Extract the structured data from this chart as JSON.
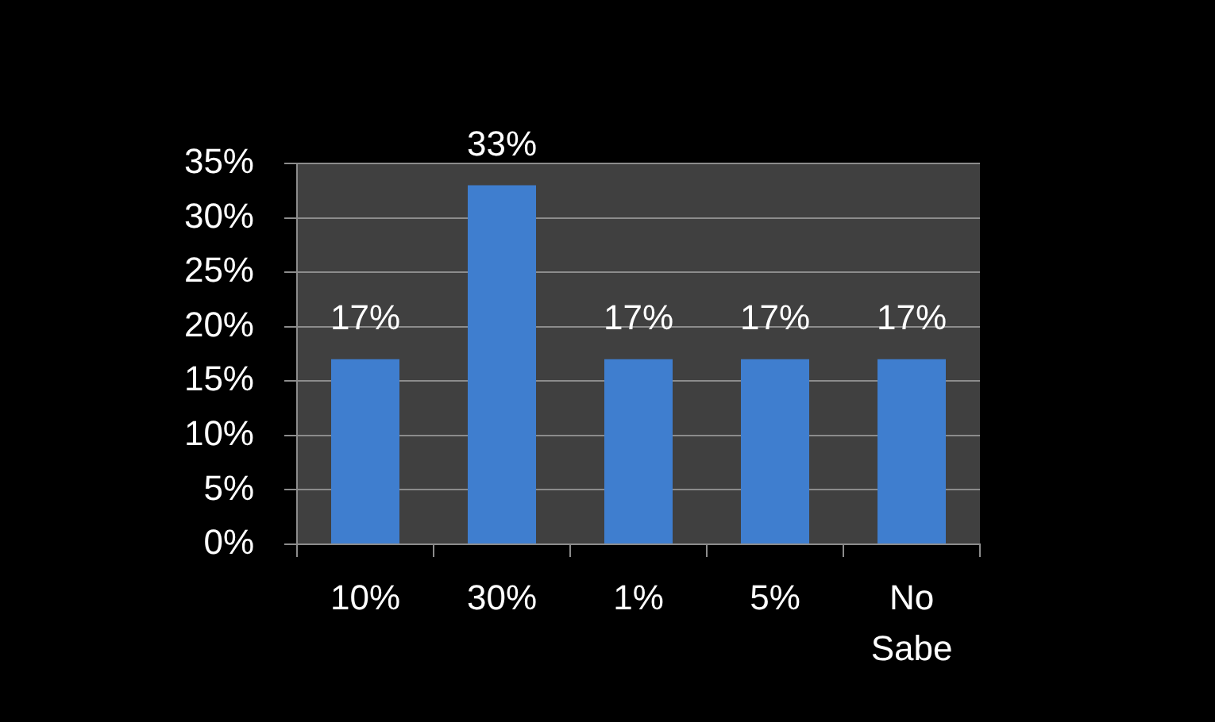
{
  "chart_data": {
    "type": "bar",
    "categories": [
      "10%",
      "30%",
      "1%",
      "5%",
      "No Sabe"
    ],
    "values": [
      17,
      33,
      17,
      17,
      17
    ],
    "color": "#3f7ecf",
    "value_labels": [
      "17%",
      "33%",
      "17%",
      "17%",
      "17%"
    ],
    "ylim": [
      0,
      35
    ],
    "yticks": [
      {
        "value": 0,
        "label": "0%"
      },
      {
        "value": 5,
        "label": "5%"
      },
      {
        "value": 10,
        "label": "10%"
      },
      {
        "value": 15,
        "label": "15%"
      },
      {
        "value": 20,
        "label": "20%"
      },
      {
        "value": 25,
        "label": "25%"
      },
      {
        "value": 30,
        "label": "30%"
      },
      {
        "value": 35,
        "label": "35%"
      }
    ],
    "grid": "y"
  }
}
